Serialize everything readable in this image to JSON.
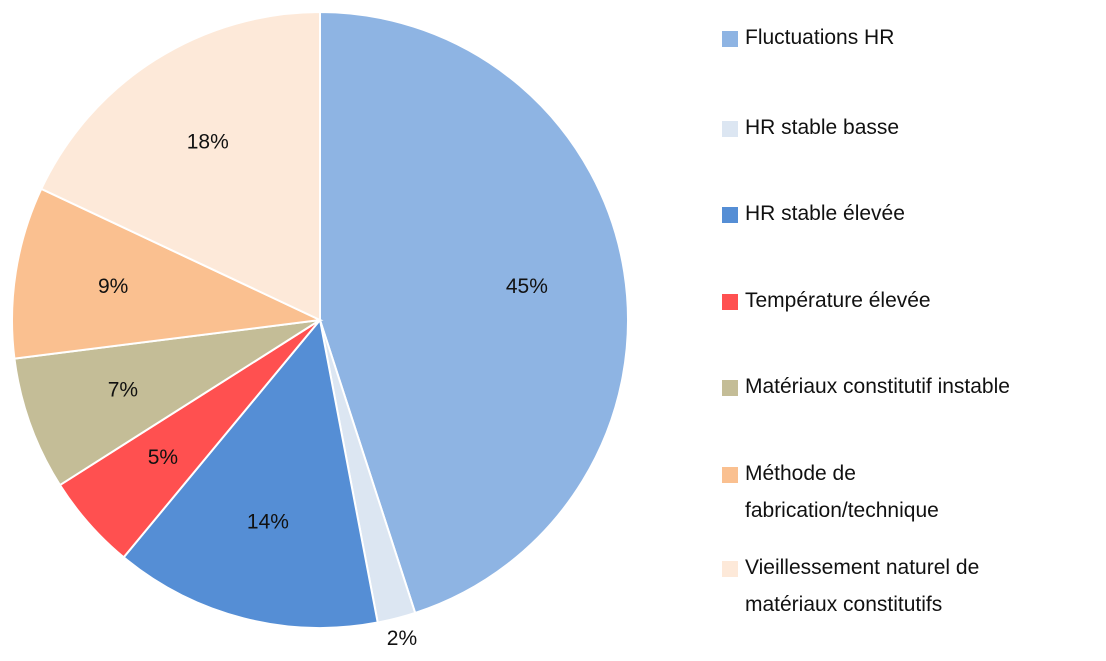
{
  "chart_data": {
    "type": "pie",
    "categories": [
      "Fluctuations HR",
      "HR stable basse",
      "HR stable élevée",
      "Température élevée",
      "Matériaux constitutif instable",
      "Méthode de\nfabrication/technique",
      "Vieillessement naturel de\nmatériaux constitutifs"
    ],
    "values": [
      45,
      2,
      14,
      5,
      7,
      9,
      18
    ],
    "value_labels": [
      "45%",
      "2%",
      "14%",
      "5%",
      "7%",
      "9%",
      "18%"
    ],
    "colors": [
      "#8eb4e3",
      "#dce6f2",
      "#558ed5",
      "#ff5050",
      "#c4bd97",
      "#fac090",
      "#fde9d9"
    ],
    "legend": "right"
  }
}
